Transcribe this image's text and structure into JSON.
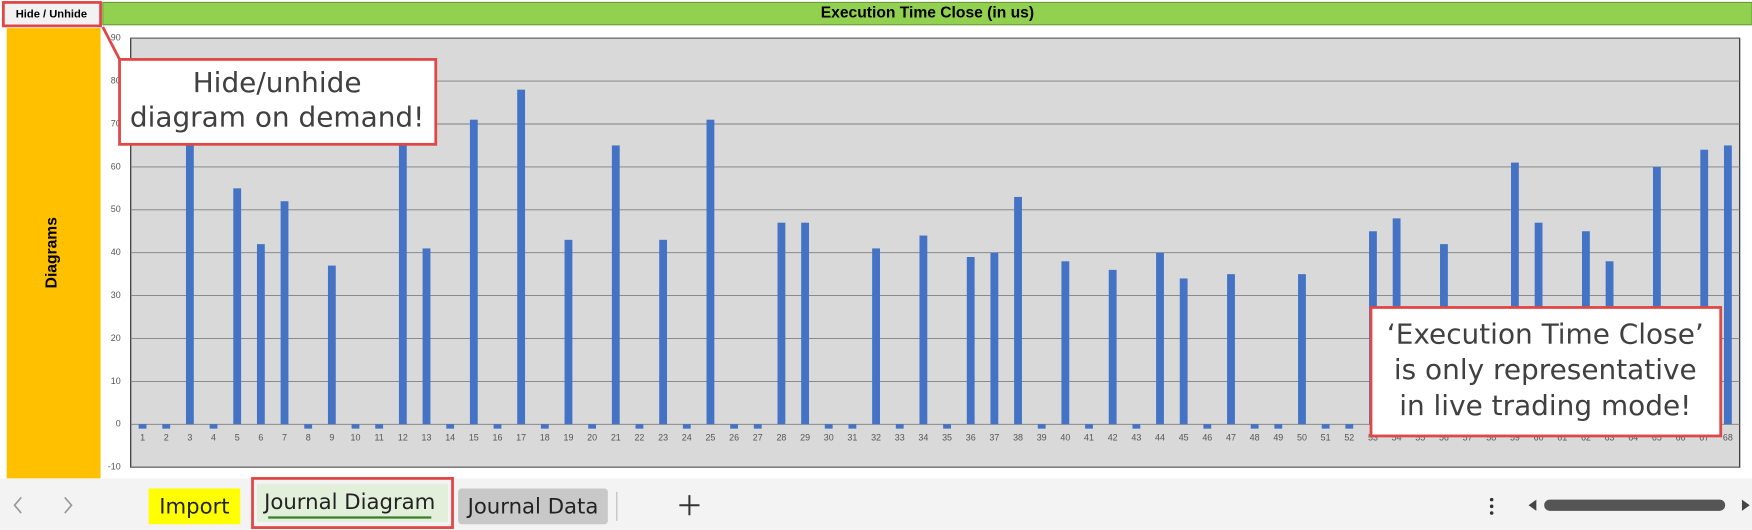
{
  "toolbar": {
    "hide_button": "Hide / Unhide",
    "sidebar_label": "Diagrams"
  },
  "chart_data": {
    "type": "bar",
    "title": "Execution Time Close (in us)",
    "categories": [
      "1",
      "2",
      "3",
      "4",
      "5",
      "6",
      "7",
      "8",
      "9",
      "10",
      "11",
      "12",
      "13",
      "14",
      "15",
      "16",
      "17",
      "18",
      "19",
      "20",
      "21",
      "22",
      "23",
      "24",
      "25",
      "26",
      "27",
      "28",
      "29",
      "30",
      "31",
      "32",
      "33",
      "34",
      "35",
      "36",
      "37",
      "38",
      "39",
      "40",
      "41",
      "42",
      "43",
      "44",
      "45",
      "46",
      "47",
      "48",
      "49",
      "50",
      "51",
      "52",
      "53",
      "54",
      "55",
      "56",
      "57",
      "58",
      "59",
      "60",
      "61",
      "62",
      "63",
      "64",
      "65",
      "66",
      "67",
      "68"
    ],
    "values": [
      -1,
      -1,
      68,
      -1,
      55,
      42,
      52,
      -1,
      37,
      -1,
      -1,
      68,
      41,
      -1,
      71,
      -1,
      78,
      -1,
      43,
      -1,
      65,
      -1,
      43,
      -1,
      71,
      -1,
      -1,
      47,
      47,
      -1,
      -1,
      41,
      -1,
      44,
      -1,
      39,
      40,
      53,
      -1,
      38,
      -1,
      36,
      -1,
      40,
      34,
      -1,
      35,
      -1,
      -1,
      35,
      -1,
      -1,
      45,
      48,
      -1,
      42,
      -1,
      -1,
      61,
      47,
      -1,
      45,
      38,
      -1,
      60,
      -1,
      64,
      65
    ],
    "color": "#4472c4",
    "ylim": [
      -10,
      90
    ],
    "yticks": [
      -10,
      0,
      10,
      20,
      30,
      40,
      50,
      60,
      70,
      80,
      90
    ],
    "grid": true
  },
  "callouts": [
    {
      "lines": [
        "Hide/unhide",
        "diagram on demand!"
      ]
    },
    {
      "lines": [
        "‘Execution Time Close’",
        "is only representative",
        "in live trading mode!"
      ]
    }
  ],
  "tabs": [
    "Import",
    "Journal Diagram",
    "Journal Data"
  ]
}
